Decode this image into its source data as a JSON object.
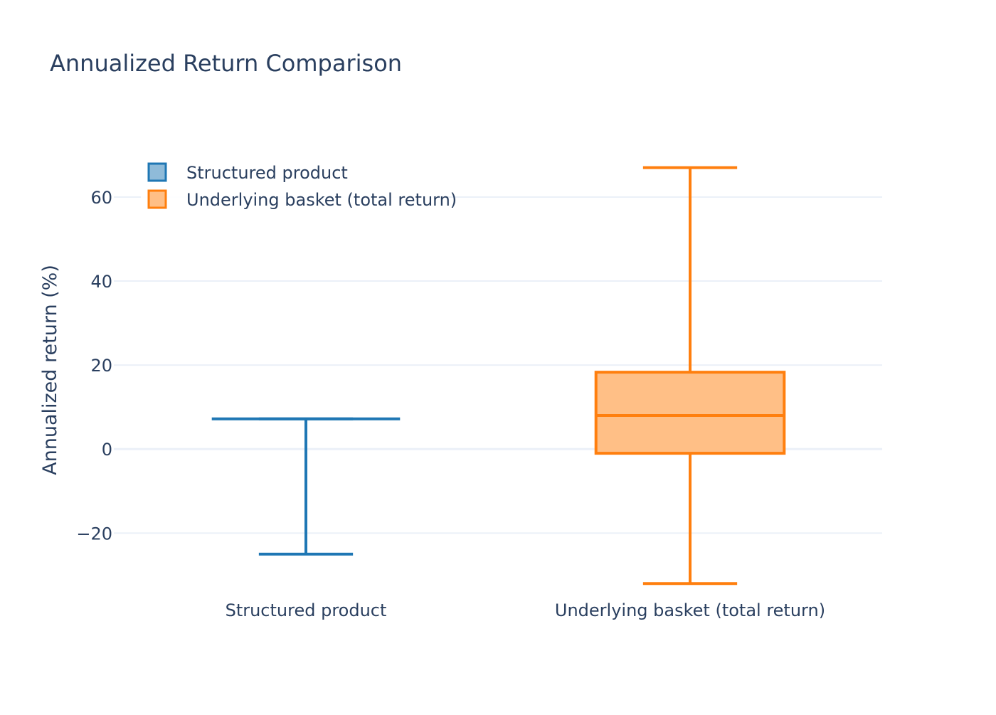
{
  "chart_data": {
    "type": "box",
    "title": "Annualized Return Comparison",
    "xlabel": "",
    "ylabel": "Annualized return (%)",
    "ylim": [
      -34,
      71
    ],
    "yticks": [
      -20,
      0,
      20,
      40,
      60
    ],
    "ytick_labels": [
      "−20",
      "0",
      "20",
      "40",
      "60"
    ],
    "categories": [
      "Structured product",
      "Underlying basket (total return)"
    ],
    "grid": true,
    "legend_position": "top-left",
    "series": [
      {
        "name": "Structured product",
        "category": "Structured product",
        "color": "#1f77b4",
        "fill": "#8fbbd9",
        "min": -25,
        "q1": 7.2,
        "median": 7.2,
        "q3": 7.2,
        "max": 7.2
      },
      {
        "name": "Underlying basket (total return)",
        "category": "Underlying basket (total return)",
        "color": "#ff7f0e",
        "fill": "#ffbf86",
        "min": -32,
        "q1": -1,
        "median": 8,
        "q3": 18.3,
        "max": 67
      }
    ]
  }
}
